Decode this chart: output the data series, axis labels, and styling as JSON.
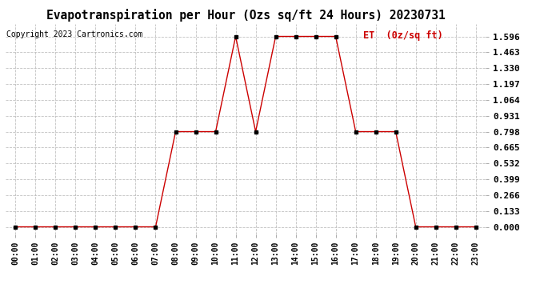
{
  "title": "Evapotranspiration per Hour (Ozs sq/ft 24 Hours) 20230731",
  "copyright": "Copyright 2023 Cartronics.com",
  "legend_label": "ET  (0z/sq ft)",
  "hours": [
    "00:00",
    "01:00",
    "02:00",
    "03:00",
    "04:00",
    "05:00",
    "06:00",
    "07:00",
    "08:00",
    "09:00",
    "10:00",
    "11:00",
    "12:00",
    "13:00",
    "14:00",
    "15:00",
    "16:00",
    "17:00",
    "18:00",
    "19:00",
    "20:00",
    "21:00",
    "22:00",
    "23:00"
  ],
  "values": [
    0.0,
    0.0,
    0.0,
    0.0,
    0.0,
    0.0,
    0.0,
    0.0,
    0.798,
    0.798,
    0.798,
    1.596,
    0.798,
    1.596,
    1.596,
    1.596,
    1.596,
    0.798,
    0.798,
    0.798,
    0.0,
    0.0,
    0.0,
    0.0
  ],
  "line_color": "#cc0000",
  "marker_color": "#000000",
  "grid_color": "#bbbbbb",
  "bg_color": "#ffffff",
  "title_color": "#000000",
  "copyright_color": "#000000",
  "legend_color": "#cc0000",
  "yticks": [
    0.0,
    0.133,
    0.266,
    0.399,
    0.532,
    0.665,
    0.798,
    0.931,
    1.064,
    1.197,
    1.33,
    1.463,
    1.596
  ],
  "ylim": [
    -0.06,
    1.7
  ],
  "title_fontsize": 10.5,
  "copyright_fontsize": 7,
  "legend_fontsize": 8.5,
  "tick_fontsize": 7,
  "ytick_fontsize": 8
}
